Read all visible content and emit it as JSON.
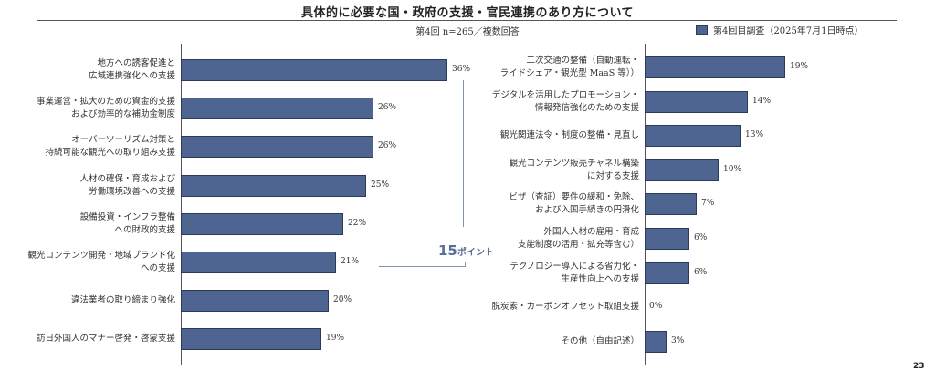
{
  "header": {
    "title": "具体的に必要な国・政府の支援・官民連携のあり方について",
    "subtitle": "第4回 n=265／複数回答"
  },
  "legend": {
    "label": "第4回目調査（2025年7月1日時点）",
    "color": "#4f6591"
  },
  "annotation": {
    "number": "15",
    "unit": "ポイント"
  },
  "page_number": "23",
  "chart_data": [
    {
      "type": "bar",
      "orientation": "horizontal",
      "title": "具体的に必要な国・政府の支援・官民連携のあり方について",
      "subtitle": "第4回 n=265／複数回答",
      "legend": [
        "第4回目調査（2025年7月1日時点）"
      ],
      "categories": [
        "地方への誘客促進と広域連携強化への支援",
        "事業運営・拡大のための資金的支援および効率的な補助金制度",
        "オーバーツーリズム対策と持続可能な観光への取り組み支援",
        "人材の確保・育成および労働環境改善への支援",
        "設備投資・インフラ整備への財政的支援",
        "観光コンテンツ開発・地域ブランド化への支援",
        "違法業者の取り締まり強化",
        "訪日外国人のマナー啓発・啓蒙支援"
      ],
      "values": [
        36,
        26,
        26,
        25,
        22,
        21,
        20,
        19
      ],
      "unit": "%"
    },
    {
      "type": "bar",
      "orientation": "horizontal",
      "legend": [
        "第4回目調査（2025年7月1日時点）"
      ],
      "categories": [
        "二次交通の整備（自動運転・ライドシェア・観光型 MaaS 等））",
        "デジタルを活用したプロモーション・情報発信強化のための支援",
        "観光関連法令・制度の整備・見直し",
        "観光コンテンツ販売チャネル構築に対する支援",
        "ビザ（査証）要件の緩和・免除、および入国手続きの円滑化",
        "外国人人材の雇用・育成支能制度の活用・拡充等含む）",
        "テクノロジー導入による省力化・生産性向上への支援",
        "脱炭素・カーボンオフセット取組支援",
        "その他（自由記述）"
      ],
      "values": [
        19,
        14,
        13,
        10,
        7,
        6,
        6,
        0,
        3
      ],
      "unit": "%",
      "annotation": "15ポイント (difference between 36% and 21%)"
    }
  ],
  "left_chart": {
    "items": [
      {
        "line1": "地方への誘客促進と",
        "line2": "広域連携強化への支援",
        "value": 36,
        "label": "36%"
      },
      {
        "line1": "事業運営・拡大のための資金的支援",
        "line2": "および効率的な補助金制度",
        "value": 26,
        "label": "26%"
      },
      {
        "line1": "オーバーツーリズム対策と",
        "line2": "持続可能な観光への取り組み支援",
        "value": 26,
        "label": "26%"
      },
      {
        "line1": "人材の確保・育成および",
        "line2": "労働環境改善への支援",
        "value": 25,
        "label": "25%"
      },
      {
        "line1": "設備投資・インフラ整備",
        "line2": "への財政的支援",
        "value": 22,
        "label": "22%"
      },
      {
        "line1": "観光コンテンツ開発・地域ブランド化",
        "line2": "への支援",
        "value": 21,
        "label": "21%"
      },
      {
        "line1": "違法業者の取り締まり強化",
        "line2": "",
        "value": 20,
        "label": "20%"
      },
      {
        "line1": "訪日外国人のマナー啓発・啓蒙支援",
        "line2": "",
        "value": 19,
        "label": "19%"
      }
    ]
  },
  "right_chart": {
    "items": [
      {
        "line1": "二次交通の整備（自動運転・",
        "line2": "ライドシェア・観光型 MaaS 等））",
        "value": 19,
        "label": "19%"
      },
      {
        "line1": "デジタルを活用したプロモーション・",
        "line2": "情報発信強化のための支援",
        "value": 14,
        "label": "14%"
      },
      {
        "line1": "観光関連法令・制度の整備・見直し",
        "line2": "",
        "value": 13,
        "label": "13%"
      },
      {
        "line1": "観光コンテンツ販売チャネル構築",
        "line2": "に対する支援",
        "value": 10,
        "label": "10%"
      },
      {
        "line1": "ビザ（査証）要件の緩和・免除、",
        "line2": "および入国手続きの円滑化",
        "value": 7,
        "label": "7%"
      },
      {
        "line1": "外国人人材の雇用・育成",
        "line2": "支能制度の活用・拡充等含む）",
        "value": 6,
        "label": "6%"
      },
      {
        "line1": "テクノロジー導入による省力化・",
        "line2": "生産性向上への支援",
        "value": 6,
        "label": "6%"
      },
      {
        "line1": "脱炭素・カーボンオフセット取組支援",
        "line2": "",
        "value": 0,
        "label": "0%"
      },
      {
        "line1": "その他（自由記述）",
        "line2": "",
        "value": 3,
        "label": "3%"
      }
    ]
  }
}
